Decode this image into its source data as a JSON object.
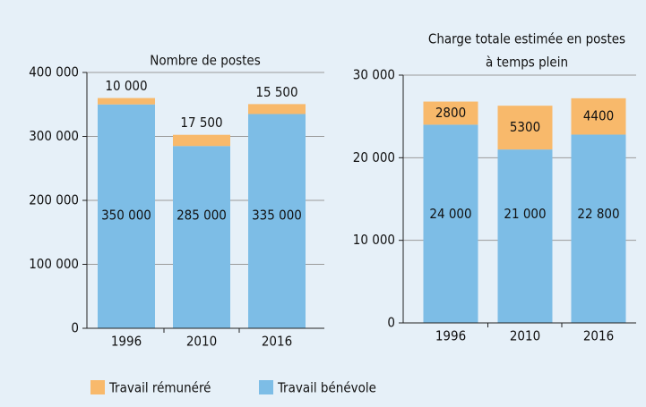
{
  "legend": [
    {
      "name": "Travail rémunéré",
      "color": "#f8b96b"
    },
    {
      "name": "Travail bénévole",
      "color": "#7dbde6"
    }
  ],
  "chart_data": [
    {
      "type": "stacked_bar",
      "title": [
        "Nombre de postes"
      ],
      "categories": [
        "1996",
        "2010",
        "2016"
      ],
      "series": [
        {
          "color": "#7dbde6",
          "values": [
            350000,
            285000,
            335000
          ],
          "value_labels": [
            "350 000",
            "285 000",
            "335 000"
          ],
          "label_position": "center"
        },
        {
          "color": "#f8b96b",
          "values": [
            10000,
            17500,
            15500
          ],
          "value_labels": [
            "10 000",
            "17 500",
            "15 500"
          ],
          "label_position": "above"
        }
      ],
      "ylim": [
        0,
        400000
      ],
      "yticks": [
        0,
        {
          "value": 100000,
          "label": "100 000"
        },
        {
          "value": 200000,
          "label": "200 000"
        },
        {
          "value": 300000,
          "label": "300 000"
        },
        {
          "value": 400000,
          "label": "400 000"
        }
      ],
      "grid": true
    },
    {
      "type": "stacked_bar",
      "title": [
        "Charge totale estimée en postes",
        "à temps plein"
      ],
      "categories": [
        "1996",
        "2010",
        "2016"
      ],
      "series": [
        {
          "color": "#7dbde6",
          "values": [
            24000,
            21000,
            22800
          ],
          "value_labels": [
            "24 000",
            "21 000",
            "22 800"
          ],
          "label_position": "center"
        },
        {
          "color": "#f8b96b",
          "values": [
            2800,
            5300,
            4400
          ],
          "label_position": "inside"
        }
      ],
      "ylim": [
        0,
        30000
      ],
      "yticks": [
        0,
        {
          "value": 10000,
          "label": "10 000"
        },
        {
          "value": 20000,
          "label": "20 000"
        },
        {
          "value": 30000,
          "label": "30 000"
        }
      ],
      "grid": true
    }
  ]
}
